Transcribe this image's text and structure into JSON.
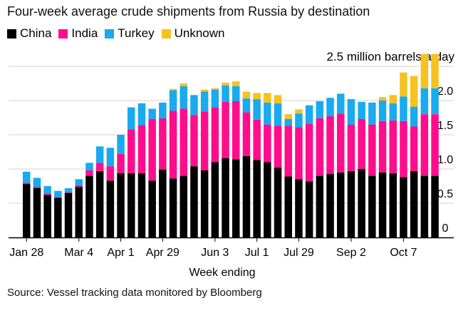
{
  "title": "Four-week average crude shipments from Russia by destination",
  "unit_label": "2.5 million barrels a day",
  "source": "Source: Vessel tracking data monitored by Bloomberg",
  "legend": [
    {
      "name": "China",
      "color": "#000000"
    },
    {
      "name": "India",
      "color": "#ff0d8c"
    },
    {
      "name": "Turkey",
      "color": "#19aaf0"
    },
    {
      "name": "Unknown",
      "color": "#f6c21d"
    }
  ],
  "chart_data": {
    "type": "bar",
    "stacked": true,
    "xlabel": "Week ending",
    "ylabel": "",
    "ylim": [
      0,
      2.5
    ],
    "yticks": [
      "0",
      "0.5",
      "1.0",
      "1.5",
      "2.0"
    ],
    "yticks_values": [
      0,
      0.5,
      1.0,
      1.5,
      2.0
    ],
    "grid": true,
    "legend_position": "top-left",
    "xtick_labels": [
      {
        "label": "Jan 28",
        "index": 0
      },
      {
        "label": "Mar 4",
        "index": 5
      },
      {
        "label": "Apr 1",
        "index": 9
      },
      {
        "label": "Apr 29",
        "index": 13
      },
      {
        "label": "Jun 3",
        "index": 18
      },
      {
        "label": "Jul 1",
        "index": 22
      },
      {
        "label": "Jul 29",
        "index": 26
      },
      {
        "label": "Sep 2",
        "index": 31
      },
      {
        "label": "Oct 7",
        "index": 36
      }
    ],
    "categories": [
      "1",
      "2",
      "3",
      "4",
      "5",
      "6",
      "7",
      "8",
      "9",
      "10",
      "11",
      "12",
      "13",
      "14",
      "15",
      "16",
      "17",
      "18",
      "19",
      "20",
      "21",
      "22",
      "23",
      "24",
      "25",
      "26",
      "27",
      "28",
      "29",
      "30",
      "31",
      "32",
      "33",
      "34",
      "35",
      "36",
      "37",
      "38",
      "39",
      "40"
    ],
    "series": [
      {
        "name": "China",
        "color": "#000000",
        "values": [
          0.78,
          0.72,
          0.62,
          0.58,
          0.65,
          0.74,
          0.9,
          0.97,
          0.83,
          0.94,
          0.94,
          0.94,
          0.83,
          0.99,
          0.86,
          0.9,
          1.04,
          0.98,
          1.1,
          1.16,
          1.14,
          1.19,
          1.13,
          1.1,
          1.02,
          0.89,
          0.85,
          0.82,
          0.9,
          0.93,
          0.95,
          0.97,
          1.0,
          0.9,
          0.95,
          0.94,
          0.88,
          0.97,
          0.9,
          0.9
        ]
      },
      {
        "name": "India",
        "color": "#ff0d8c",
        "values": [
          0.02,
          0.02,
          0.02,
          0.01,
          0.01,
          0.02,
          0.08,
          0.12,
          0.21,
          0.28,
          0.64,
          0.7,
          0.9,
          0.75,
          0.99,
          0.98,
          0.75,
          0.86,
          0.8,
          0.82,
          0.85,
          0.64,
          0.59,
          0.55,
          0.61,
          0.74,
          0.76,
          0.84,
          0.84,
          0.84,
          0.86,
          0.68,
          0.73,
          0.75,
          0.75,
          0.77,
          0.82,
          0.65,
          0.9,
          0.9
        ]
      },
      {
        "name": "Turkey",
        "color": "#19aaf0",
        "values": [
          0.16,
          0.13,
          0.11,
          0.09,
          0.06,
          0.09,
          0.11,
          0.24,
          0.27,
          0.28,
          0.32,
          0.32,
          0.15,
          0.23,
          0.3,
          0.33,
          0.29,
          0.29,
          0.26,
          0.24,
          0.22,
          0.2,
          0.3,
          0.32,
          0.33,
          0.1,
          0.2,
          0.27,
          0.25,
          0.27,
          0.29,
          0.37,
          0.25,
          0.32,
          0.3,
          0.25,
          0.36,
          0.29,
          0.38,
          0.38
        ]
      },
      {
        "name": "Unknown",
        "color": "#f6c21d",
        "values": [
          0,
          0,
          0,
          0,
          0,
          0,
          0,
          0,
          0,
          0,
          0,
          0,
          0,
          0,
          0.02,
          0.04,
          0,
          0.03,
          0.02,
          0.04,
          0.07,
          0.1,
          0.09,
          0.14,
          0.12,
          0.07,
          0.06,
          0,
          0,
          0,
          0,
          0,
          0,
          0,
          0.05,
          0.12,
          0.35,
          0.45,
          0.5,
          0.5
        ]
      }
    ]
  }
}
